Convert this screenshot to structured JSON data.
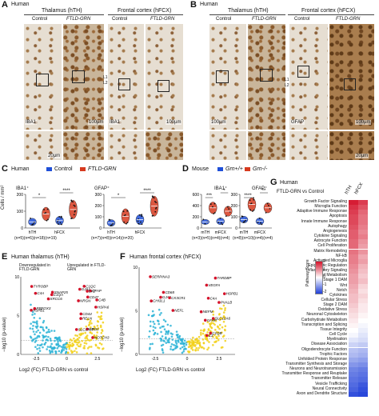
{
  "panels": {
    "A": {
      "letter": "A",
      "species": "Human",
      "region_left": "Thalamus (hTH)",
      "region_right": "Frontal cortex (hFCX)",
      "control": "Control",
      "ftld": "FTLD-GRN",
      "stain": "IBA1",
      "scale_big": "100µm",
      "scale_small": "20µm",
      "layer1": "L1",
      "layer2": "L2"
    },
    "B": {
      "letter": "B",
      "species": "Human",
      "region_left": "Thalamus (hTH)",
      "region_right": "Frontal cortex (hFCX)",
      "control": "Control",
      "ftld": "FTLD-GRN",
      "stain": "GFAP",
      "scale_big": "100µm",
      "scale_small": "20µm",
      "layer1": "L1",
      "layer2": "L2"
    },
    "C": {
      "letter": "C",
      "species": "Human",
      "legend_control": "Control",
      "legend_ftld": "FTLD-GRN",
      "ylabel": "Cells / mm²",
      "sub1": "IBA1⁺",
      "sub2": "GFAP⁺",
      "xt": [
        "hTH",
        "hFCX",
        "hTH",
        "hFCX"
      ],
      "n1": "(n=5)(n=6)(n=18)(n=19)",
      "n2": "(n=7)(n=8)(n=14)(n=20)",
      "yt1": [
        "0",
        "100",
        "200"
      ],
      "yt2": [
        "0",
        "100",
        "200",
        "300"
      ],
      "sig": [
        "*",
        "****",
        "*",
        "****"
      ]
    },
    "D": {
      "letter": "D",
      "species": "Mouse",
      "legend_wt": "Grn+/+",
      "legend_ko": "Grn-/-",
      "sub1": "IBA1⁺",
      "sub2": "GFAP⁺",
      "xt": [
        "mTH",
        "mFCX",
        "mTH",
        "mFCX"
      ],
      "n1": "(n=3)(n=5)(n=4)(n=4)",
      "n2": "(n=8)(n=10)(n=4)(n=4)",
      "yt1": [
        "0",
        "200",
        "400",
        "600"
      ],
      "yt2": [
        "0",
        "100",
        "200",
        "300"
      ],
      "sig": [
        "***",
        "*",
        "****",
        "**"
      ]
    },
    "E": {
      "letter": "E",
      "title": "Human thalamus (hTH)",
      "down": "Downregulated in FTLD-GRN",
      "up": "Upregulated in FTLD-GRN",
      "ylabel": "−log10 (p-value)",
      "xlabel": "Log2 (FC) FTLD-GRN vs control",
      "xt": [
        "-2.5",
        "0",
        "2.5"
      ],
      "yt": [
        "0",
        "5",
        "10"
      ],
      "genes": [
        "XRCC6",
        "ORD1",
        "RELN",
        "RBFOX3",
        "NRGN",
        "C1QC",
        "C1QA",
        "CD47",
        "GFAP",
        "C4A",
        "C4B",
        "CD44",
        "TYROBP",
        "LYZ",
        "NOTCH3",
        "HSPB1",
        "HSPA6",
        "GJA1",
        "SNAP25",
        "SLC17A7"
      ]
    },
    "F": {
      "letter": "F",
      "title": "Human frontal cortex (hFCX)",
      "ylabel": "−log10 (p-value)",
      "xlabel": "Log2 (FC) FTLD-GRN vs control",
      "xt": [
        "-2.5",
        "0",
        "2.5"
      ],
      "yt": [
        "0",
        "5",
        "10"
      ],
      "genes": [
        "GJA1",
        "SLC12A6",
        "C4A",
        "NEFL",
        "PVALB",
        "NEFM",
        "SERPINA3",
        "HSPB1",
        "VEGFA",
        "CX3CR1",
        "C1QB",
        "GFAP",
        "CD68",
        "TARDBP",
        "C3",
        "CHI3L1"
      ]
    },
    "G": {
      "letter": "G",
      "species": "Human",
      "subtitle": "FTLD-GRN vs Control",
      "col1": "hTH",
      "col2": "hFCX",
      "scale_title": "Pathway Score",
      "scale_ticks": [
        "2",
        "1",
        "0",
        "-1",
        "-2"
      ],
      "pathways": [
        "Growth Factor Signaling",
        "Microglia Function",
        "Adaptive Immune Response",
        "Apoptosis",
        "Innate Immune Response",
        "Autophagy",
        "Angiogenesis",
        "Cytokine Signaling",
        "Astrocyte Function",
        "Cell Proliferation",
        "Matrix Remodeling",
        "NF-kB",
        "Activated Microglia",
        "Epigenetic Regulation",
        "Inflammatory Signaling",
        "Lipid Metabolism",
        "Stage 1 DAM",
        "Wnt",
        "Notch",
        "Cytokines",
        "Cellular Stress",
        "Stage 2 DAM",
        "Oxidative Stress",
        "Neuronal Cytoskeleton",
        "Carbohydrate Metabolism",
        "Transcription and Splicing",
        "Tissue Integrity",
        "Cell Cycle",
        "Myelination",
        "Disease Association",
        "Oligodendrocyte Function",
        "Trophic Factors",
        "Unfolded Protein Response",
        "Transmitter Synthesis and Storage",
        "Neurons and Neurotransmission",
        "Transmitter Response and Reuptake",
        "Transmitter Release",
        "Vesicle Trafficking",
        "Neural Connectivity",
        "Axon and Dendrite Structure"
      ],
      "scores_hTH": [
        2.1,
        1.9,
        1.8,
        1.7,
        1.7,
        1.6,
        1.5,
        1.5,
        1.4,
        1.4,
        1.3,
        1.2,
        1.2,
        1.1,
        1.0,
        0.9,
        0.9,
        0.8,
        0.7,
        0.6,
        0.6,
        0.5,
        0.4,
        0.3,
        0.2,
        0.1,
        0.0,
        -0.1,
        -0.3,
        -0.5,
        -0.7,
        -0.8,
        -1.0,
        -1.2,
        -1.4,
        -1.5,
        -1.6,
        -1.7,
        -1.8,
        -2.0
      ],
      "scores_hFCX": [
        1.8,
        1.6,
        1.4,
        1.3,
        1.3,
        1.2,
        1.1,
        1.2,
        1.0,
        0.9,
        1.0,
        0.8,
        0.9,
        0.7,
        0.6,
        0.5,
        0.6,
        0.4,
        0.3,
        0.4,
        0.3,
        0.2,
        0.2,
        0.1,
        0.0,
        -0.1,
        -0.2,
        -0.3,
        -0.4,
        -0.6,
        -0.8,
        -0.9,
        -1.1,
        -1.3,
        -1.5,
        -1.6,
        -1.7,
        -1.9,
        -2.0,
        -2.1
      ]
    }
  },
  "colors": {
    "control": "#1f4fd8",
    "ftld": "#d63a1f",
    "volcano_up": "#f2d017",
    "volcano_down": "#2bb3d6",
    "sig": "#d4122a"
  }
}
